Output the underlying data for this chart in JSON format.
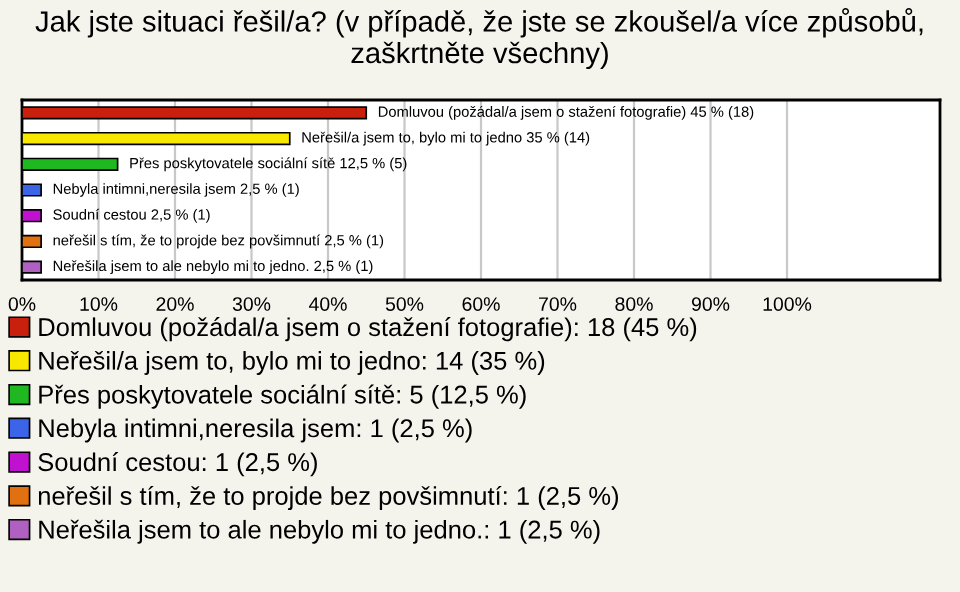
{
  "chart_data": {
    "type": "bar",
    "orientation": "horizontal",
    "stacked": true,
    "title": "Jak jste situaci řešil/a? (v případě, že jste se zkoušel/a více způsobů, zaškrtněte všechny)",
    "categories": [
      null,
      null,
      null,
      null,
      null,
      null,
      null
    ],
    "series": [
      {
        "name": "Domluvou (požádal/a jsem o stažení fotografie): 18 (45 %)",
        "color": "#c8200c",
        "values": [
          45,
          null,
          null,
          null,
          null,
          null,
          null
        ],
        "value_labels": [
          "Domluvou (požádal/a jsem o stažení fotografie) 45 % (18)",
          null,
          null,
          null,
          null,
          null,
          null
        ]
      },
      {
        "name": "Neřešil/a jsem to, bylo mi to jedno: 14 (35 %)",
        "color": "#f8e800",
        "values": [
          null,
          35,
          null,
          null,
          null,
          null,
          null
        ],
        "value_labels": [
          null,
          "Neřešil/a jsem to, bylo mi to jedno 35 % (14)",
          null,
          null,
          null,
          null,
          null
        ]
      },
      {
        "name": "Přes poskytovatele sociální sítě: 5 (12,5 %)",
        "color": "#20b820",
        "values": [
          null,
          null,
          12.5,
          null,
          null,
          null,
          null
        ],
        "value_labels": [
          null,
          null,
          "Přes poskytovatele sociální sítě 12,5 % (5)",
          null,
          null,
          null,
          null
        ]
      },
      {
        "name": "Nebyla intimni,neresila jsem: 1 (2,5 %)",
        "color": "#3c64e8",
        "values": [
          null,
          null,
          null,
          2.5,
          null,
          null,
          null
        ],
        "value_labels": [
          null,
          null,
          null,
          "Nebyla intimni,neresila jsem 2,5 % (1)",
          null,
          null,
          null
        ]
      },
      {
        "name": "Soudní cestou: 1 (2,5 %)",
        "color": "#c010d0",
        "values": [
          null,
          null,
          null,
          null,
          2.5,
          null,
          null
        ],
        "value_labels": [
          null,
          null,
          null,
          null,
          "Soudní cestou 2,5 % (1)",
          null,
          null
        ]
      },
      {
        "name": "neřešil s tím, že to projde bez povšimnutí: 1 (2,5 %)",
        "color": "#e07010",
        "values": [
          null,
          null,
          null,
          null,
          null,
          2.5,
          null
        ],
        "value_labels": [
          null,
          null,
          null,
          null,
          null,
          "neřešil s tím, že to projde bez povšimnutí 2,5 % (1)",
          null
        ]
      },
      {
        "name": "Neřešila jsem to ale nebylo mi to jedno.: 1 (2,5 %)",
        "color": "#b060c0",
        "values": [
          null,
          null,
          null,
          null,
          null,
          null,
          2.5
        ],
        "value_labels": [
          null,
          null,
          null,
          null,
          null,
          null,
          "Neřešila jsem to ale nebylo mi to jedno. 2,5 % (1)"
        ]
      }
    ],
    "xlim": [
      0,
      120
    ],
    "xticks": [
      {
        "value": 0,
        "label": "0%"
      },
      {
        "value": 10,
        "label": "10%"
      },
      {
        "value": 20,
        "label": "20%"
      },
      {
        "value": 30,
        "label": "30%"
      },
      {
        "value": 40,
        "label": "40%"
      },
      {
        "value": 50,
        "label": "50%"
      },
      {
        "value": 60,
        "label": "60%"
      },
      {
        "value": 70,
        "label": "70%"
      },
      {
        "value": 80,
        "label": "80%"
      },
      {
        "value": 90,
        "label": "90%"
      },
      {
        "value": 100,
        "label": "100%"
      }
    ],
    "grid": "x",
    "legend": "bottom"
  }
}
